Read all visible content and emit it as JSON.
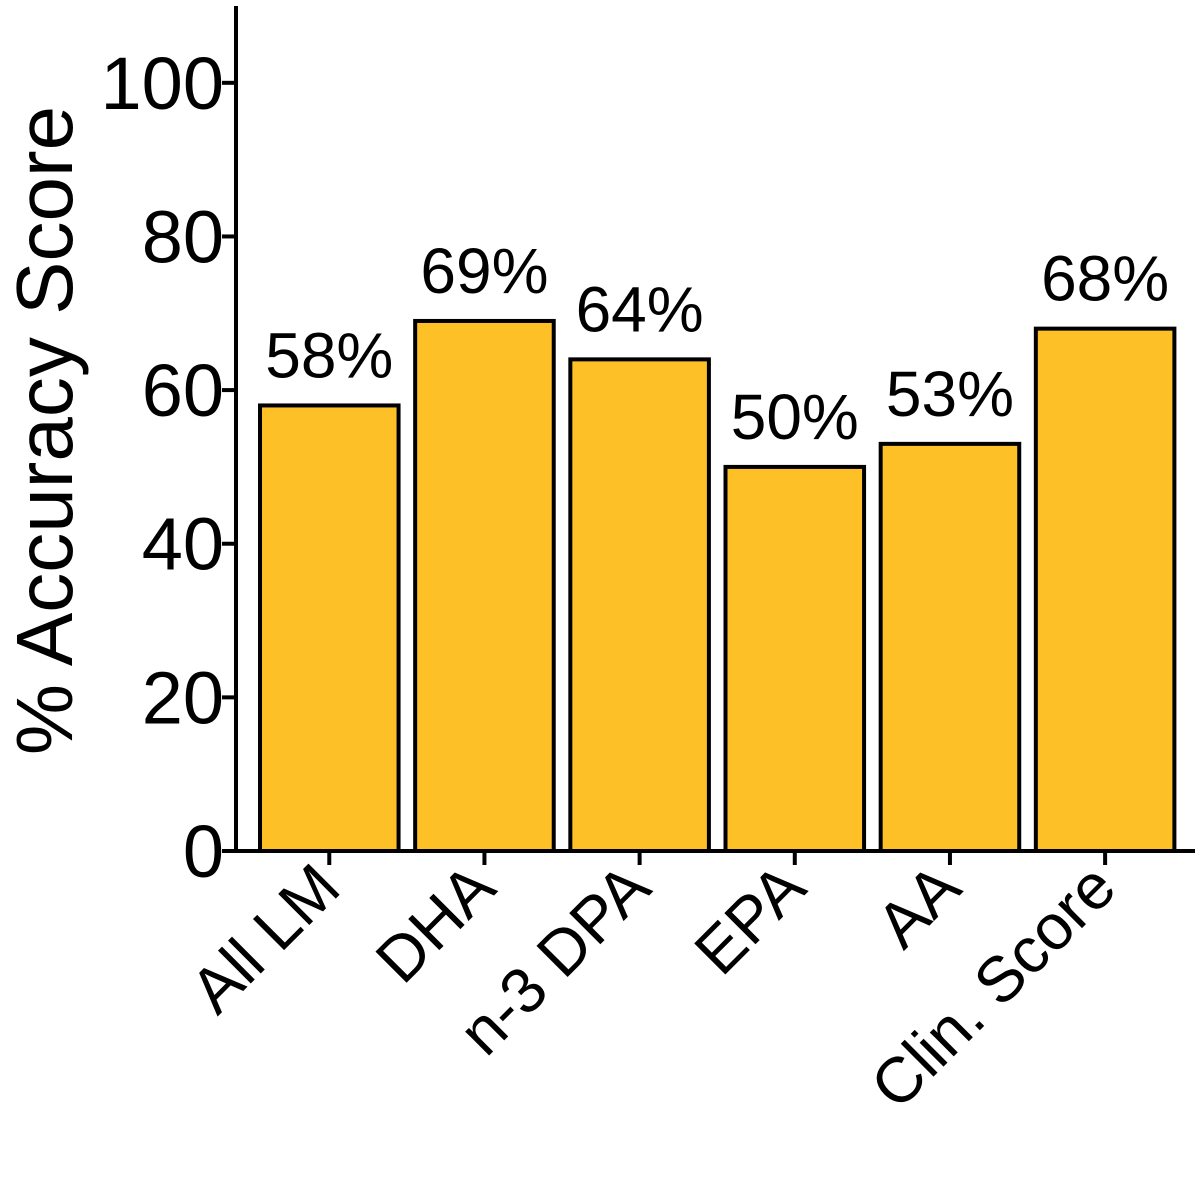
{
  "chart_data": {
    "type": "bar",
    "title": "",
    "xlabel": "",
    "ylabel": "% Accuracy Score",
    "categories": [
      "All LM",
      "DHA",
      "n-3 DPA",
      "EPA",
      "AA",
      "Clin. Score"
    ],
    "values": [
      58,
      69,
      64,
      50,
      53,
      68
    ],
    "data_labels": [
      "58%",
      "69%",
      "64%",
      "50%",
      "53%",
      "68%"
    ],
    "ylim": [
      0,
      110
    ],
    "yticks": [
      0,
      20,
      40,
      60,
      80,
      100
    ],
    "grid": false,
    "legend": "none",
    "bar_color": "#FDC127",
    "edge_color": "#000000"
  }
}
